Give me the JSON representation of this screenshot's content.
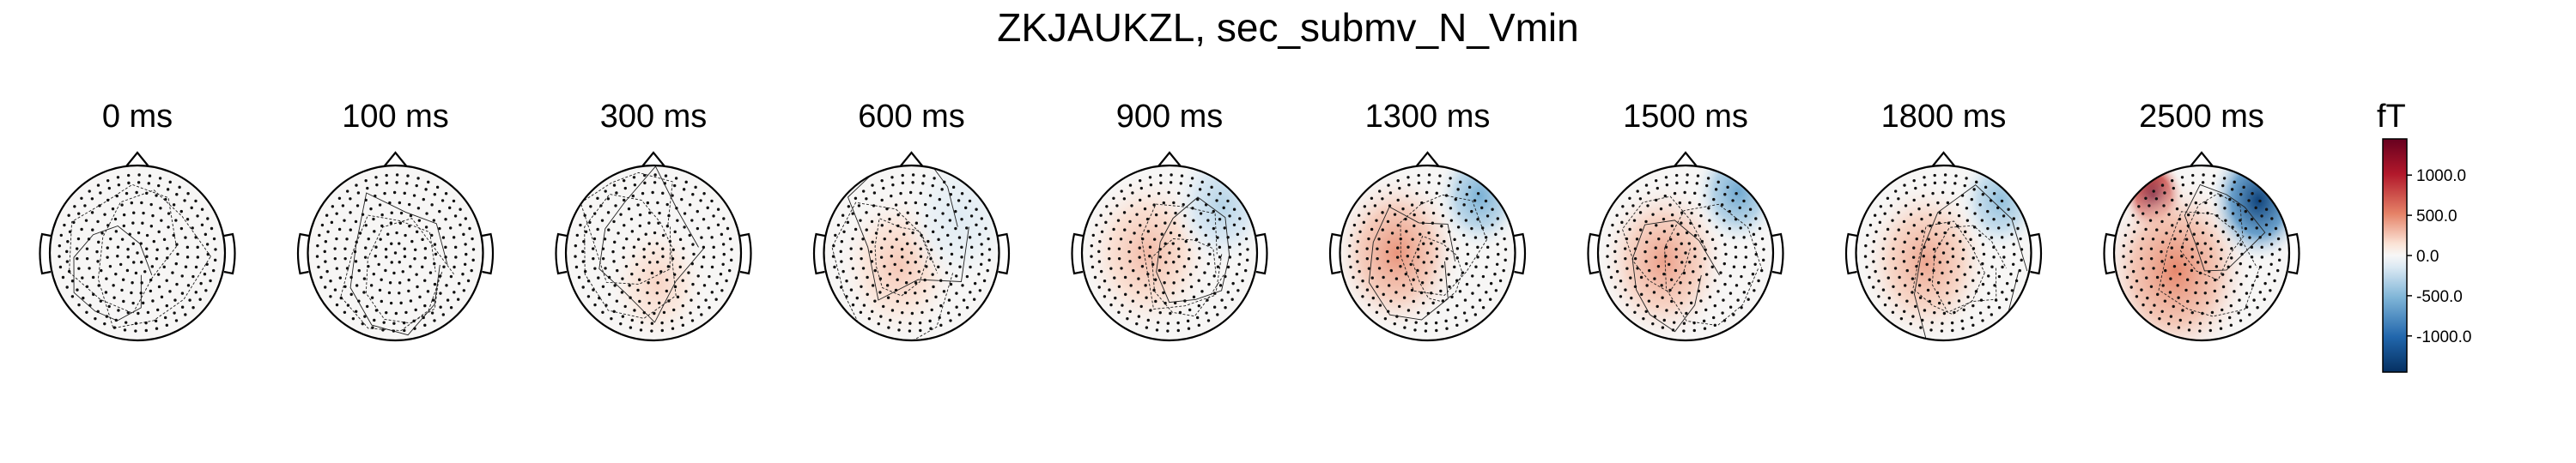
{
  "title": "ZKJAUKZL, sec_submv_N_Vmin",
  "colorbar": {
    "unit": "fT",
    "ticks": [
      "1000.0",
      "500.0",
      "0.0",
      "-500.0",
      "-1000.0"
    ],
    "tick_values": [
      1000,
      500,
      0,
      -500,
      -1000
    ],
    "range": [
      -1450,
      1450
    ],
    "colors": {
      "positive": "#8b0a1e",
      "mid": "#f7f4f2",
      "negative": "#0d3a6b"
    }
  },
  "panels": [
    {
      "label": "0 ms",
      "blobs": []
    },
    {
      "label": "100 ms",
      "blobs": []
    },
    {
      "label": "300 ms",
      "blobs": [
        {
          "dx": 0.05,
          "dy": 0.35,
          "r": 0.45,
          "v": 200
        }
      ]
    },
    {
      "label": "600 ms",
      "blobs": [
        {
          "dx": -0.15,
          "dy": 0.15,
          "r": 0.55,
          "v": 250
        },
        {
          "dx": 0.55,
          "dy": -0.4,
          "r": 0.5,
          "v": -120
        }
      ]
    },
    {
      "label": "900 ms",
      "blobs": [
        {
          "dx": -0.25,
          "dy": 0.0,
          "r": 0.6,
          "v": 300
        },
        {
          "dx": 0.6,
          "dy": -0.55,
          "r": 0.45,
          "v": -300
        }
      ]
    },
    {
      "label": "1300 ms",
      "blobs": [
        {
          "dx": -0.35,
          "dy": 0.0,
          "r": 0.6,
          "v": 450
        },
        {
          "dx": 0.6,
          "dy": -0.65,
          "r": 0.4,
          "v": -550
        }
      ]
    },
    {
      "label": "1500 ms",
      "blobs": [
        {
          "dx": -0.25,
          "dy": 0.1,
          "r": 0.6,
          "v": 400
        },
        {
          "dx": 0.6,
          "dy": -0.7,
          "r": 0.4,
          "v": -600
        }
      ]
    },
    {
      "label": "1800 ms",
      "blobs": [
        {
          "dx": -0.2,
          "dy": 0.1,
          "r": 0.6,
          "v": 380
        },
        {
          "dx": 0.65,
          "dy": -0.6,
          "r": 0.38,
          "v": -450
        }
      ]
    },
    {
      "label": "2500 ms",
      "blobs": [
        {
          "dx": -0.55,
          "dy": -0.65,
          "r": 0.28,
          "v": 1400
        },
        {
          "dx": -0.3,
          "dy": 0.2,
          "r": 0.7,
          "v": 500
        },
        {
          "dx": 0.65,
          "dy": -0.6,
          "r": 0.45,
          "v": -1300
        }
      ]
    }
  ]
}
